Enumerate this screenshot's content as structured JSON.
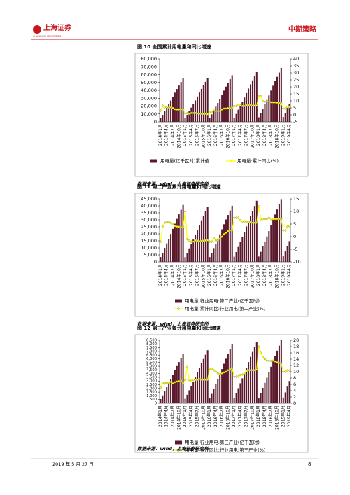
{
  "header": {
    "logo": "上海证券",
    "logo_en": "SHANGHAI SECURITIES",
    "section": "中期策略"
  },
  "footer": {
    "date": "2019 年 5 月 27 日",
    "page": "8"
  },
  "chart_data": [
    {
      "type": "bar_line",
      "title": "图 10 全国累计用电量和同比增速",
      "source": "数据来源：wind，上海证券研究所",
      "categories": [
        "2014年1月",
        null,
        null,
        "2014年4月",
        null,
        null,
        "2014年7月",
        null,
        null,
        "2014年10月",
        null,
        null,
        "2015年1月",
        null,
        null,
        "2015年4月",
        null,
        null,
        "2015年7月",
        null,
        null,
        "2015年10月",
        null,
        null,
        "2016年1月",
        null,
        null,
        "2016年4月",
        null,
        null,
        "2016年7月",
        null,
        null,
        "2016年10月",
        null,
        null,
        "2017年1月",
        null,
        null,
        "2017年4月",
        null,
        null,
        "2017年7月",
        null,
        null,
        "2017年10月",
        null,
        null,
        "2018年1月",
        null,
        null,
        "2018年4月",
        null,
        null,
        "2018年7月",
        null,
        null,
        "2018年10月",
        null,
        null,
        "2019年1月",
        null,
        null,
        "2019年4月"
      ],
      "series": [
        {
          "name": "用电量(亿千瓦时)累计值",
          "color": "#5a1a2c",
          "axis": "y",
          "values": [
            4695,
            8837,
            13532,
            17951,
            22369,
            27064,
            32035,
            37006,
            41701,
            46120,
            50538,
            55233,
            4718,
            8880,
            13598,
            18038,
            22478,
            27195,
            32190,
            37185,
            41903,
            46343,
            50783,
            55500,
            5032,
            9472,
            14504,
            19239,
            23975,
            29007,
            34335,
            39663,
            44694,
            49430,
            54166,
            59198,
            5362,
            10092,
            15454,
            20500,
            25546,
            30908,
            36585,
            42262,
            47623,
            52669,
            57715,
            63077,
            5818,
            10952,
            16770,
            22246,
            27722,
            33540,
            39700,
            45861,
            51679,
            57155,
            62631,
            68449,
            6112,
            11500,
            17600,
            22275
          ]
        },
        {
          "name": "用电量:累计同比(%)",
          "color": "#ffff00",
          "axis": "y2",
          "values": [
            3,
            6.5,
            5.4,
            5.3,
            5.2,
            5.3,
            4.9,
            4,
            3.8,
            3.8,
            3.8,
            3.8,
            1,
            1.2,
            0.8,
            1.3,
            1.3,
            1.3,
            1,
            0.8,
            0.8,
            0.7,
            0.8,
            0.5,
            2,
            1.9,
            3.2,
            2.6,
            2.6,
            2.7,
            3.8,
            4.5,
            4.5,
            4.8,
            4.8,
            5,
            6.3,
            6.3,
            6.9,
            6.7,
            6.3,
            6.3,
            6.9,
            6.9,
            6.9,
            6.6,
            6.6,
            6.6,
            13.3,
            13.3,
            9.8,
            9.3,
            9.7,
            9.4,
            9,
            8.9,
            8.9,
            8.7,
            8.5,
            8.5,
            4.5,
            4.5,
            5.6,
            5.6
          ]
        }
      ],
      "ylim": [
        0,
        80000
      ],
      "yticks": [
        0,
        {
          "value": 10000,
          "label": "10,000"
        },
        {
          "value": 20000,
          "label": "20,000"
        },
        {
          "value": 30000,
          "label": "30,000"
        },
        {
          "value": 40000,
          "label": "40,000"
        },
        {
          "value": 50000,
          "label": "50,000"
        },
        {
          "value": 60000,
          "label": "60,000"
        },
        {
          "value": 70000,
          "label": "70,000"
        },
        {
          "value": 80000,
          "label": "80,000"
        }
      ],
      "y2lim": [
        -5,
        40
      ],
      "y2ticks": [
        -5,
        0,
        5,
        10,
        15,
        20,
        25,
        30,
        35,
        40
      ]
    },
    {
      "type": "bar_line",
      "title": "图 11 第二产业累计用电量和同比增速",
      "source": "数据来源：wind，上海证券研究所",
      "categories": [
        "2014年1月",
        null,
        null,
        "2014年4月",
        null,
        null,
        "2014年7月",
        null,
        null,
        "2014年10月",
        null,
        null,
        "2015年1月",
        null,
        null,
        "2015年4月",
        null,
        null,
        "2015年7月",
        null,
        null,
        "2015年10月",
        null,
        null,
        "2016年1月",
        null,
        null,
        "2016年4月",
        null,
        null,
        "2016年7月",
        null,
        null,
        "2016年10月",
        null,
        null,
        "2017年1月",
        null,
        null,
        "2017年4月",
        null,
        null,
        "2017年7月",
        null,
        null,
        "2017年10月",
        null,
        null,
        "2018年1月",
        null,
        null,
        "2018年4月",
        null,
        null,
        "2018年7月",
        null,
        null,
        "2018年10月",
        null,
        null,
        "2019年1月",
        null,
        null,
        "2019年4月"
      ],
      "series": [
        {
          "name": "用电量:行业用电:第二产业(亿千瓦时)",
          "color": "#5a1a2c",
          "axis": "y",
          "values": [
            3455,
            6504,
            9959,
            13211,
            16463,
            19919,
            23577,
            27236,
            30691,
            33943,
            37195,
            40650,
            3345,
            6296,
            9640,
            12788,
            15936,
            19281,
            22822,
            26363,
            29708,
            32856,
            36003,
            39348,
            3406,
            6412,
            9819,
            13025,
            16231,
            19637,
            23244,
            26851,
            30257,
            33463,
            36670,
            40076,
            3708,
            6980,
            10688,
            14178,
            17668,
            21376,
            25302,
            29228,
            32936,
            36426,
            39916,
            43624,
            3808,
            7168,
            10976,
            14560,
            18144,
            21952,
            25984,
            30016,
            33824,
            37408,
            40992,
            44800,
            3960,
            7450,
            11400,
            14800
          ]
        },
        {
          "name": "用电量:累计同比:行业用电:第二产业(%)",
          "color": "#ffff00",
          "axis": "y2",
          "values": [
            -2,
            4,
            5.5,
            5.8,
            5.8,
            5.5,
            5,
            4.2,
            4,
            3.9,
            3.8,
            3.7,
            10,
            -1,
            -1.5,
            -2,
            -2,
            -1.5,
            -1.6,
            -1.8,
            -1.7,
            -1.6,
            -1.5,
            -1.4,
            -2,
            -2,
            -0.5,
            -1.5,
            -1.5,
            -0.8,
            0,
            1,
            1.5,
            2.2,
            2.5,
            2.5,
            7.5,
            7.5,
            7.5,
            6.5,
            6,
            6,
            6,
            5.8,
            5.8,
            5.5,
            5.5,
            5.5,
            12,
            7,
            7,
            7,
            7,
            7.5,
            7,
            7,
            7,
            7,
            7,
            7,
            2.5,
            2.5,
            4,
            4.2
          ]
        }
      ],
      "ylim": [
        0,
        45000
      ],
      "yticks": [
        0,
        {
          "value": 5000,
          "label": "5,000"
        },
        {
          "value": 10000,
          "label": "10,000"
        },
        {
          "value": 15000,
          "label": "15,000"
        },
        {
          "value": 20000,
          "label": "20,000"
        },
        {
          "value": 25000,
          "label": "25,000"
        },
        {
          "value": 30000,
          "label": "30,000"
        },
        {
          "value": 35000,
          "label": "35,000"
        },
        {
          "value": 40000,
          "label": "40,000"
        },
        {
          "value": 45000,
          "label": "45,000"
        }
      ],
      "y2lim": [
        -10,
        15
      ],
      "y2ticks": [
        -10,
        -5,
        0,
        5,
        10,
        15
      ]
    },
    {
      "type": "bar_line",
      "title": "图 12 第三产业累计用电量和同比增速",
      "source": "数据来源：wind，上海证券研究所",
      "categories": [
        "2014年1月",
        null,
        null,
        "2014年4月",
        null,
        null,
        "2014年7月",
        null,
        null,
        "2014年10月",
        null,
        null,
        "2015年1月",
        null,
        null,
        "2015年4月",
        null,
        null,
        "2015年7月",
        null,
        null,
        "2015年10月",
        null,
        null,
        "2016年1月",
        null,
        null,
        "2016年4月",
        null,
        null,
        "2016年7月",
        null,
        null,
        "2016年10月",
        null,
        null,
        "2017年1月",
        null,
        null,
        "2017年4月",
        null,
        null,
        "2017年7月",
        null,
        null,
        "2017年10月",
        null,
        null,
        "2018年1月",
        null,
        null,
        "2018年4月",
        null,
        null,
        "2018年7月",
        null,
        null,
        "2018年10月",
        null,
        null,
        "2019年1月",
        null,
        null,
        "2019年4月"
      ],
      "series": [
        {
          "name": "用电量:行业用电:第三产业(亿千瓦时)",
          "color": "#5a1a2c",
          "axis": "y",
          "values": [
            566,
            1066,
            1632,
            2165,
            2697,
            3263,
            3863,
            4462,
            5028,
            5561,
            6094,
            6660,
            608,
            1145,
            1754,
            2326,
            2899,
            3507,
            4152,
            4796,
            5404,
            5977,
            6550,
            7158,
            677,
            1274,
            1950,
            2587,
            3224,
            3901,
            4617,
            5334,
            6011,
            6647,
            7284,
            7961,
            706,
            1328,
            2034,
            2698,
            3362,
            4067,
            4814,
            5561,
            6267,
            6931,
            7595,
            8300,
            723,
            1360,
            2083,
            2763,
            3443,
            4165,
            4930,
            5695,
            6418,
            7098,
            7778,
            8500,
            780,
            1470,
            2250,
            3000
          ]
        },
        {
          "name": "用电量:累计同比:行业用电:第三产业(%)",
          "color": "#ffff00",
          "axis": "y2",
          "values": [
            5,
            6.5,
            6.3,
            6.5,
            6.5,
            6.8,
            6.3,
            6.7,
            6.9,
            7,
            7.2,
            6.4,
            7.4,
            11.5,
            7.4,
            7.1,
            7.4,
            7.4,
            7.5,
            7.7,
            7.5,
            7.5,
            7.5,
            7.5,
            11,
            11,
            10.5,
            10,
            9.5,
            9.2,
            9.5,
            9.8,
            10,
            10.5,
            10.8,
            11.2,
            8.4,
            8.4,
            8.5,
            9,
            9.1,
            9.5,
            10.2,
            10.5,
            10.5,
            10.5,
            10.5,
            10.7,
            18,
            16,
            14.6,
            14,
            13.5,
            13.5,
            13.4,
            13.5,
            13.3,
            13,
            12.8,
            12.7,
            10,
            10,
            10.4,
            10.4
          ]
        }
      ],
      "ylim": [
        0,
        8500
      ],
      "yticks": [
        0,
        500,
        {
          "value": 1000,
          "label": "1,000"
        },
        {
          "value": 1500,
          "label": "1,500"
        },
        {
          "value": 2000,
          "label": "2,000"
        },
        {
          "value": 2500,
          "label": "2,500"
        },
        {
          "value": 3000,
          "label": "3,000"
        },
        {
          "value": 3500,
          "label": "3,500"
        },
        {
          "value": 4000,
          "label": "4,000"
        },
        {
          "value": 4500,
          "label": "4,500"
        },
        {
          "value": 5000,
          "label": "5,000"
        },
        {
          "value": 5500,
          "label": "5,500"
        },
        {
          "value": 6000,
          "label": "6,000"
        },
        {
          "value": 6500,
          "label": "6,500"
        },
        {
          "value": 7000,
          "label": "7,000"
        },
        {
          "value": 7500,
          "label": "7,500"
        },
        {
          "value": 8000,
          "label": "8,000"
        },
        {
          "value": 8500,
          "label": "8,500"
        }
      ],
      "y2lim": [
        0,
        20
      ],
      "y2ticks": [
        0,
        2,
        4,
        6,
        8,
        10,
        12,
        14,
        16,
        18,
        20
      ]
    }
  ]
}
